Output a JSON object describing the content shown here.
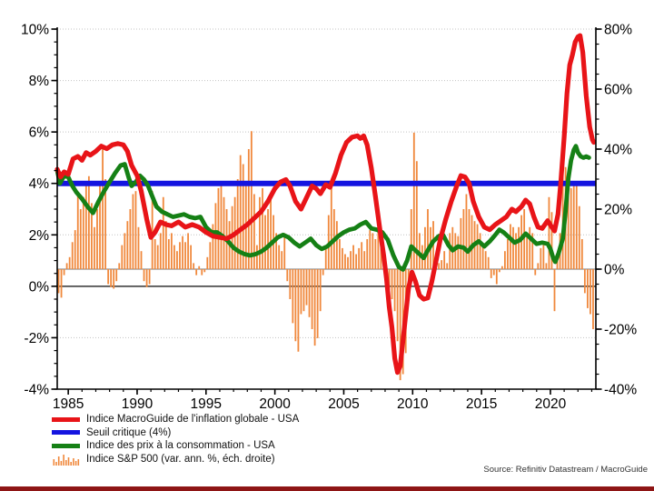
{
  "colors": {
    "inflation_red": "#e81418",
    "threshold_blue": "#1414e0",
    "cpi_green": "#158015",
    "sp500_orange": "#f0883c",
    "grid": "#c3c3c3",
    "zero_line": "#333333",
    "bars_baseline": "#777777",
    "axis": "#000000",
    "footer_bar": "#8e1515"
  },
  "legend": [
    {
      "label": "Indice MacroGuide de l'inflation globale - USA",
      "color": "#e81418",
      "type": "line"
    },
    {
      "label": "Seuil critique (4%)",
      "color": "#1414e0",
      "type": "line"
    },
    {
      "label": "Indice des prix à la consommation - USA",
      "color": "#158015",
      "type": "line"
    },
    {
      "label": "Indice S&P 500 (var. ann. %, éch. droite)",
      "color": "#f0883c",
      "type": "bars"
    }
  ],
  "source": "Source: Refinitiv Datastream / MacroGuide",
  "chart_data": {
    "type": "line+bar",
    "title": "",
    "x_axis": {
      "min": 1984.2,
      "max": 2023.3,
      "minor_step": 1,
      "labels": [
        {
          "v": 1985,
          "t": "1985"
        },
        {
          "v": 1990,
          "t": "1990"
        },
        {
          "v": 1995,
          "t": "1995"
        },
        {
          "v": 2000,
          "t": "2000"
        },
        {
          "v": 2005,
          "t": "2005"
        },
        {
          "v": 2010,
          "t": "2010"
        },
        {
          "v": 2015,
          "t": "2015"
        },
        {
          "v": 2020,
          "t": "2020"
        }
      ]
    },
    "y_left": {
      "min": -4,
      "max": 10,
      "minor_step": 0.5,
      "labels": [
        {
          "v": 10,
          "t": "10%"
        },
        {
          "v": 8,
          "t": "8%"
        },
        {
          "v": 6,
          "t": "6%"
        },
        {
          "v": 4,
          "t": "4%"
        },
        {
          "v": 2,
          "t": "2%"
        },
        {
          "v": 0,
          "t": "0%"
        },
        {
          "v": -2,
          "t": "-2%"
        },
        {
          "v": -4,
          "t": "-4%"
        }
      ]
    },
    "y_right": {
      "min": -40,
      "max": 80,
      "minor_step": 5,
      "labels": [
        {
          "v": 80,
          "t": "80%"
        },
        {
          "v": 60,
          "t": "60%"
        },
        {
          "v": 40,
          "t": "40%"
        },
        {
          "v": 20,
          "t": "20%"
        },
        {
          "v": 0,
          "t": "0%"
        },
        {
          "v": -20,
          "t": "-20%"
        },
        {
          "v": -40,
          "t": "-40%"
        }
      ]
    },
    "threshold": {
      "name": "Seuil critique (4%)",
      "axis": "left",
      "value": 4,
      "color": "#1414e0",
      "width": 6
    },
    "series": [
      {
        "name": "Indice des prix à la consommation - USA",
        "axis": "left",
        "color": "#158015",
        "width": 4.8,
        "points": [
          [
            1984.2,
            4.5
          ],
          [
            1984.4,
            4.0
          ],
          [
            1984.7,
            4.3
          ],
          [
            1985.0,
            4.25
          ],
          [
            1985.3,
            3.9
          ],
          [
            1985.6,
            3.65
          ],
          [
            1986.0,
            3.4
          ],
          [
            1986.4,
            3.1
          ],
          [
            1986.8,
            2.85
          ],
          [
            1987.2,
            3.3
          ],
          [
            1987.6,
            3.7
          ],
          [
            1988.0,
            4.05
          ],
          [
            1988.4,
            4.4
          ],
          [
            1988.8,
            4.7
          ],
          [
            1989.1,
            4.75
          ],
          [
            1989.4,
            4.2
          ],
          [
            1989.6,
            3.9
          ],
          [
            1989.9,
            4.05
          ],
          [
            1990.2,
            4.3
          ],
          [
            1990.5,
            4.15
          ],
          [
            1990.8,
            3.9
          ],
          [
            1991.1,
            3.5
          ],
          [
            1991.4,
            3.1
          ],
          [
            1991.8,
            2.9
          ],
          [
            1992.2,
            2.8
          ],
          [
            1992.6,
            2.7
          ],
          [
            1993.0,
            2.75
          ],
          [
            1993.4,
            2.8
          ],
          [
            1993.8,
            2.7
          ],
          [
            1994.2,
            2.65
          ],
          [
            1994.6,
            2.7
          ],
          [
            1995.0,
            2.3
          ],
          [
            1995.4,
            2.1
          ],
          [
            1995.8,
            2.1
          ],
          [
            1996.2,
            1.95
          ],
          [
            1996.6,
            1.75
          ],
          [
            1997.0,
            1.5
          ],
          [
            1997.4,
            1.35
          ],
          [
            1997.8,
            1.25
          ],
          [
            1998.2,
            1.2
          ],
          [
            1998.6,
            1.25
          ],
          [
            1999.0,
            1.35
          ],
          [
            1999.4,
            1.5
          ],
          [
            1999.8,
            1.7
          ],
          [
            2000.2,
            1.9
          ],
          [
            2000.6,
            2.0
          ],
          [
            2001.0,
            1.9
          ],
          [
            2001.4,
            1.7
          ],
          [
            2001.8,
            1.55
          ],
          [
            2002.2,
            1.7
          ],
          [
            2002.6,
            1.85
          ],
          [
            2003.0,
            1.6
          ],
          [
            2003.4,
            1.45
          ],
          [
            2003.8,
            1.55
          ],
          [
            2004.2,
            1.75
          ],
          [
            2004.6,
            1.95
          ],
          [
            2005.0,
            2.1
          ],
          [
            2005.4,
            2.2
          ],
          [
            2005.8,
            2.25
          ],
          [
            2006.2,
            2.4
          ],
          [
            2006.6,
            2.5
          ],
          [
            2007.0,
            2.25
          ],
          [
            2007.4,
            2.2
          ],
          [
            2007.8,
            2.1
          ],
          [
            2008.2,
            1.8
          ],
          [
            2008.6,
            1.2
          ],
          [
            2009.0,
            0.75
          ],
          [
            2009.3,
            0.65
          ],
          [
            2009.6,
            1.0
          ],
          [
            2009.9,
            1.55
          ],
          [
            2010.2,
            1.4
          ],
          [
            2010.5,
            1.25
          ],
          [
            2010.8,
            1.1
          ],
          [
            2011.1,
            1.4
          ],
          [
            2011.5,
            1.75
          ],
          [
            2011.9,
            1.95
          ],
          [
            2012.2,
            2.0
          ],
          [
            2012.6,
            1.6
          ],
          [
            2012.9,
            1.4
          ],
          [
            2013.3,
            1.55
          ],
          [
            2013.7,
            1.5
          ],
          [
            2014.0,
            1.35
          ],
          [
            2014.4,
            1.6
          ],
          [
            2014.8,
            1.75
          ],
          [
            2015.2,
            1.55
          ],
          [
            2015.6,
            1.75
          ],
          [
            2016.0,
            2.0
          ],
          [
            2016.3,
            2.2
          ],
          [
            2016.6,
            2.1
          ],
          [
            2017.0,
            1.9
          ],
          [
            2017.4,
            1.7
          ],
          [
            2017.8,
            1.8
          ],
          [
            2018.2,
            2.05
          ],
          [
            2018.6,
            1.85
          ],
          [
            2019.0,
            1.65
          ],
          [
            2019.4,
            1.7
          ],
          [
            2019.8,
            1.65
          ],
          [
            2020.0,
            1.45
          ],
          [
            2020.2,
            1.1
          ],
          [
            2020.35,
            0.95
          ],
          [
            2020.6,
            1.3
          ],
          [
            2020.9,
            1.85
          ],
          [
            2021.1,
            2.9
          ],
          [
            2021.3,
            4.2
          ],
          [
            2021.5,
            4.9
          ],
          [
            2021.7,
            5.3
          ],
          [
            2021.85,
            5.45
          ],
          [
            2022.0,
            5.2
          ],
          [
            2022.2,
            5.05
          ],
          [
            2022.4,
            5.0
          ],
          [
            2022.6,
            5.05
          ],
          [
            2022.8,
            5.0
          ]
        ]
      },
      {
        "name": "Indice MacroGuide de l'inflation globale - USA",
        "axis": "left",
        "color": "#e81418",
        "width": 5.2,
        "points": [
          [
            1984.2,
            4.55
          ],
          [
            1984.45,
            4.25
          ],
          [
            1984.7,
            4.45
          ],
          [
            1985.0,
            4.35
          ],
          [
            1985.35,
            4.95
          ],
          [
            1985.7,
            5.05
          ],
          [
            1986.0,
            4.9
          ],
          [
            1986.3,
            5.2
          ],
          [
            1986.6,
            5.1
          ],
          [
            1987.0,
            5.25
          ],
          [
            1987.4,
            5.45
          ],
          [
            1987.8,
            5.35
          ],
          [
            1988.2,
            5.5
          ],
          [
            1988.6,
            5.55
          ],
          [
            1989.0,
            5.5
          ],
          [
            1989.3,
            5.25
          ],
          [
            1989.6,
            4.7
          ],
          [
            1990.0,
            4.3
          ],
          [
            1990.3,
            3.7
          ],
          [
            1990.7,
            2.6
          ],
          [
            1991.0,
            1.9
          ],
          [
            1991.3,
            2.1
          ],
          [
            1991.7,
            2.5
          ],
          [
            1992.1,
            2.4
          ],
          [
            1992.5,
            2.35
          ],
          [
            1993.0,
            2.5
          ],
          [
            1993.5,
            2.3
          ],
          [
            1994.0,
            2.4
          ],
          [
            1994.5,
            2.3
          ],
          [
            1995.0,
            2.1
          ],
          [
            1995.5,
            1.95
          ],
          [
            1996.0,
            1.9
          ],
          [
            1996.5,
            1.85
          ],
          [
            1997.0,
            2.0
          ],
          [
            1997.5,
            2.2
          ],
          [
            1998.0,
            2.4
          ],
          [
            1998.5,
            2.65
          ],
          [
            1999.0,
            2.9
          ],
          [
            1999.5,
            3.3
          ],
          [
            2000.0,
            3.8
          ],
          [
            2000.4,
            4.05
          ],
          [
            2000.8,
            4.15
          ],
          [
            2001.1,
            3.9
          ],
          [
            2001.5,
            3.3
          ],
          [
            2001.9,
            3.0
          ],
          [
            2002.3,
            3.45
          ],
          [
            2002.7,
            3.9
          ],
          [
            2003.0,
            3.8
          ],
          [
            2003.3,
            3.6
          ],
          [
            2003.7,
            3.95
          ],
          [
            2004.0,
            3.85
          ],
          [
            2004.4,
            4.4
          ],
          [
            2004.8,
            5.1
          ],
          [
            2005.2,
            5.6
          ],
          [
            2005.6,
            5.8
          ],
          [
            2006.0,
            5.85
          ],
          [
            2006.2,
            5.75
          ],
          [
            2006.45,
            5.85
          ],
          [
            2006.7,
            5.5
          ],
          [
            2007.0,
            4.6
          ],
          [
            2007.3,
            3.5
          ],
          [
            2007.6,
            2.3
          ],
          [
            2007.9,
            1.2
          ],
          [
            2008.1,
            0.3
          ],
          [
            2008.3,
            -0.8
          ],
          [
            2008.5,
            -1.6
          ],
          [
            2008.7,
            -2.8
          ],
          [
            2008.9,
            -3.35
          ],
          [
            2009.1,
            -3.1
          ],
          [
            2009.4,
            -1.6
          ],
          [
            2009.7,
            -0.1
          ],
          [
            2009.95,
            0.55
          ],
          [
            2010.2,
            0.2
          ],
          [
            2010.5,
            -0.35
          ],
          [
            2010.8,
            -0.5
          ],
          [
            2011.1,
            -0.45
          ],
          [
            2011.4,
            0.2
          ],
          [
            2011.7,
            1.0
          ],
          [
            2012.0,
            1.8
          ],
          [
            2012.4,
            2.6
          ],
          [
            2012.8,
            3.3
          ],
          [
            2013.2,
            3.9
          ],
          [
            2013.5,
            4.3
          ],
          [
            2013.8,
            4.25
          ],
          [
            2014.1,
            4.0
          ],
          [
            2014.4,
            3.3
          ],
          [
            2014.8,
            2.7
          ],
          [
            2015.2,
            2.3
          ],
          [
            2015.6,
            2.2
          ],
          [
            2016.0,
            2.4
          ],
          [
            2016.4,
            2.55
          ],
          [
            2016.8,
            2.7
          ],
          [
            2017.2,
            3.0
          ],
          [
            2017.5,
            2.9
          ],
          [
            2017.9,
            3.1
          ],
          [
            2018.2,
            3.35
          ],
          [
            2018.5,
            3.2
          ],
          [
            2018.8,
            2.7
          ],
          [
            2019.1,
            2.3
          ],
          [
            2019.4,
            2.25
          ],
          [
            2019.8,
            2.55
          ],
          [
            2020.1,
            2.3
          ],
          [
            2020.3,
            2.15
          ],
          [
            2020.55,
            2.8
          ],
          [
            2020.75,
            4.0
          ],
          [
            2021.0,
            5.8
          ],
          [
            2021.2,
            7.5
          ],
          [
            2021.4,
            8.6
          ],
          [
            2021.6,
            9.0
          ],
          [
            2021.8,
            9.5
          ],
          [
            2022.0,
            9.7
          ],
          [
            2022.15,
            9.75
          ],
          [
            2022.35,
            9.1
          ],
          [
            2022.6,
            7.4
          ],
          [
            2022.85,
            6.2
          ],
          [
            2023.05,
            5.7
          ],
          [
            2023.15,
            5.6
          ]
        ]
      }
    ],
    "bars": {
      "name": "Indice S&P 500 (var. ann. %, éch. droite)",
      "axis": "right",
      "color": "#f0883c",
      "start": 1984.3,
      "step": 0.2,
      "bar_width": 1.8,
      "values": [
        -8,
        -9.5,
        -2,
        2,
        4,
        9,
        13,
        25,
        20,
        24,
        28,
        31,
        22,
        14,
        20,
        28,
        40.5,
        30,
        -5,
        -6,
        -6.5,
        -4,
        2,
        8,
        12,
        16,
        20,
        25,
        26,
        14,
        6,
        -4,
        -6,
        -5,
        26,
        10,
        8,
        12,
        24,
        16,
        10,
        12,
        8,
        6,
        9,
        11,
        9,
        12,
        8,
        2,
        -2,
        1,
        -2,
        -1,
        4,
        9,
        15,
        22,
        27,
        28,
        24,
        20,
        16,
        21,
        24,
        30,
        38,
        35,
        28,
        40,
        46,
        25,
        8,
        24,
        27,
        18,
        20,
        25,
        18,
        12,
        8,
        6,
        12,
        -4,
        -10,
        -18,
        -24,
        -27.5,
        -15,
        -14,
        -12,
        -16,
        -20,
        -25.5,
        -23,
        -14,
        -2,
        8,
        18,
        28,
        20,
        16,
        10,
        7,
        5,
        4,
        6,
        8,
        5,
        7,
        9,
        6,
        10,
        13,
        12,
        10,
        14,
        8,
        2,
        -4,
        -7,
        -10,
        -14,
        -24,
        -37,
        -35,
        -28,
        -8,
        20,
        45.5,
        36,
        12,
        8,
        14,
        20,
        14,
        16,
        4,
        2,
        3,
        6,
        2,
        12,
        14,
        12,
        11,
        17,
        20,
        25,
        20,
        18,
        16,
        15,
        12,
        8,
        6,
        4,
        -3,
        -2,
        -5,
        -1,
        1,
        6,
        10,
        15,
        14,
        12,
        14,
        18,
        20,
        12,
        14,
        12,
        -2,
        2,
        7,
        8,
        2,
        24,
        19,
        -14,
        3,
        12,
        31,
        34,
        27,
        27,
        28,
        28,
        21,
        10,
        -8,
        -13,
        -15,
        -20
      ]
    }
  }
}
